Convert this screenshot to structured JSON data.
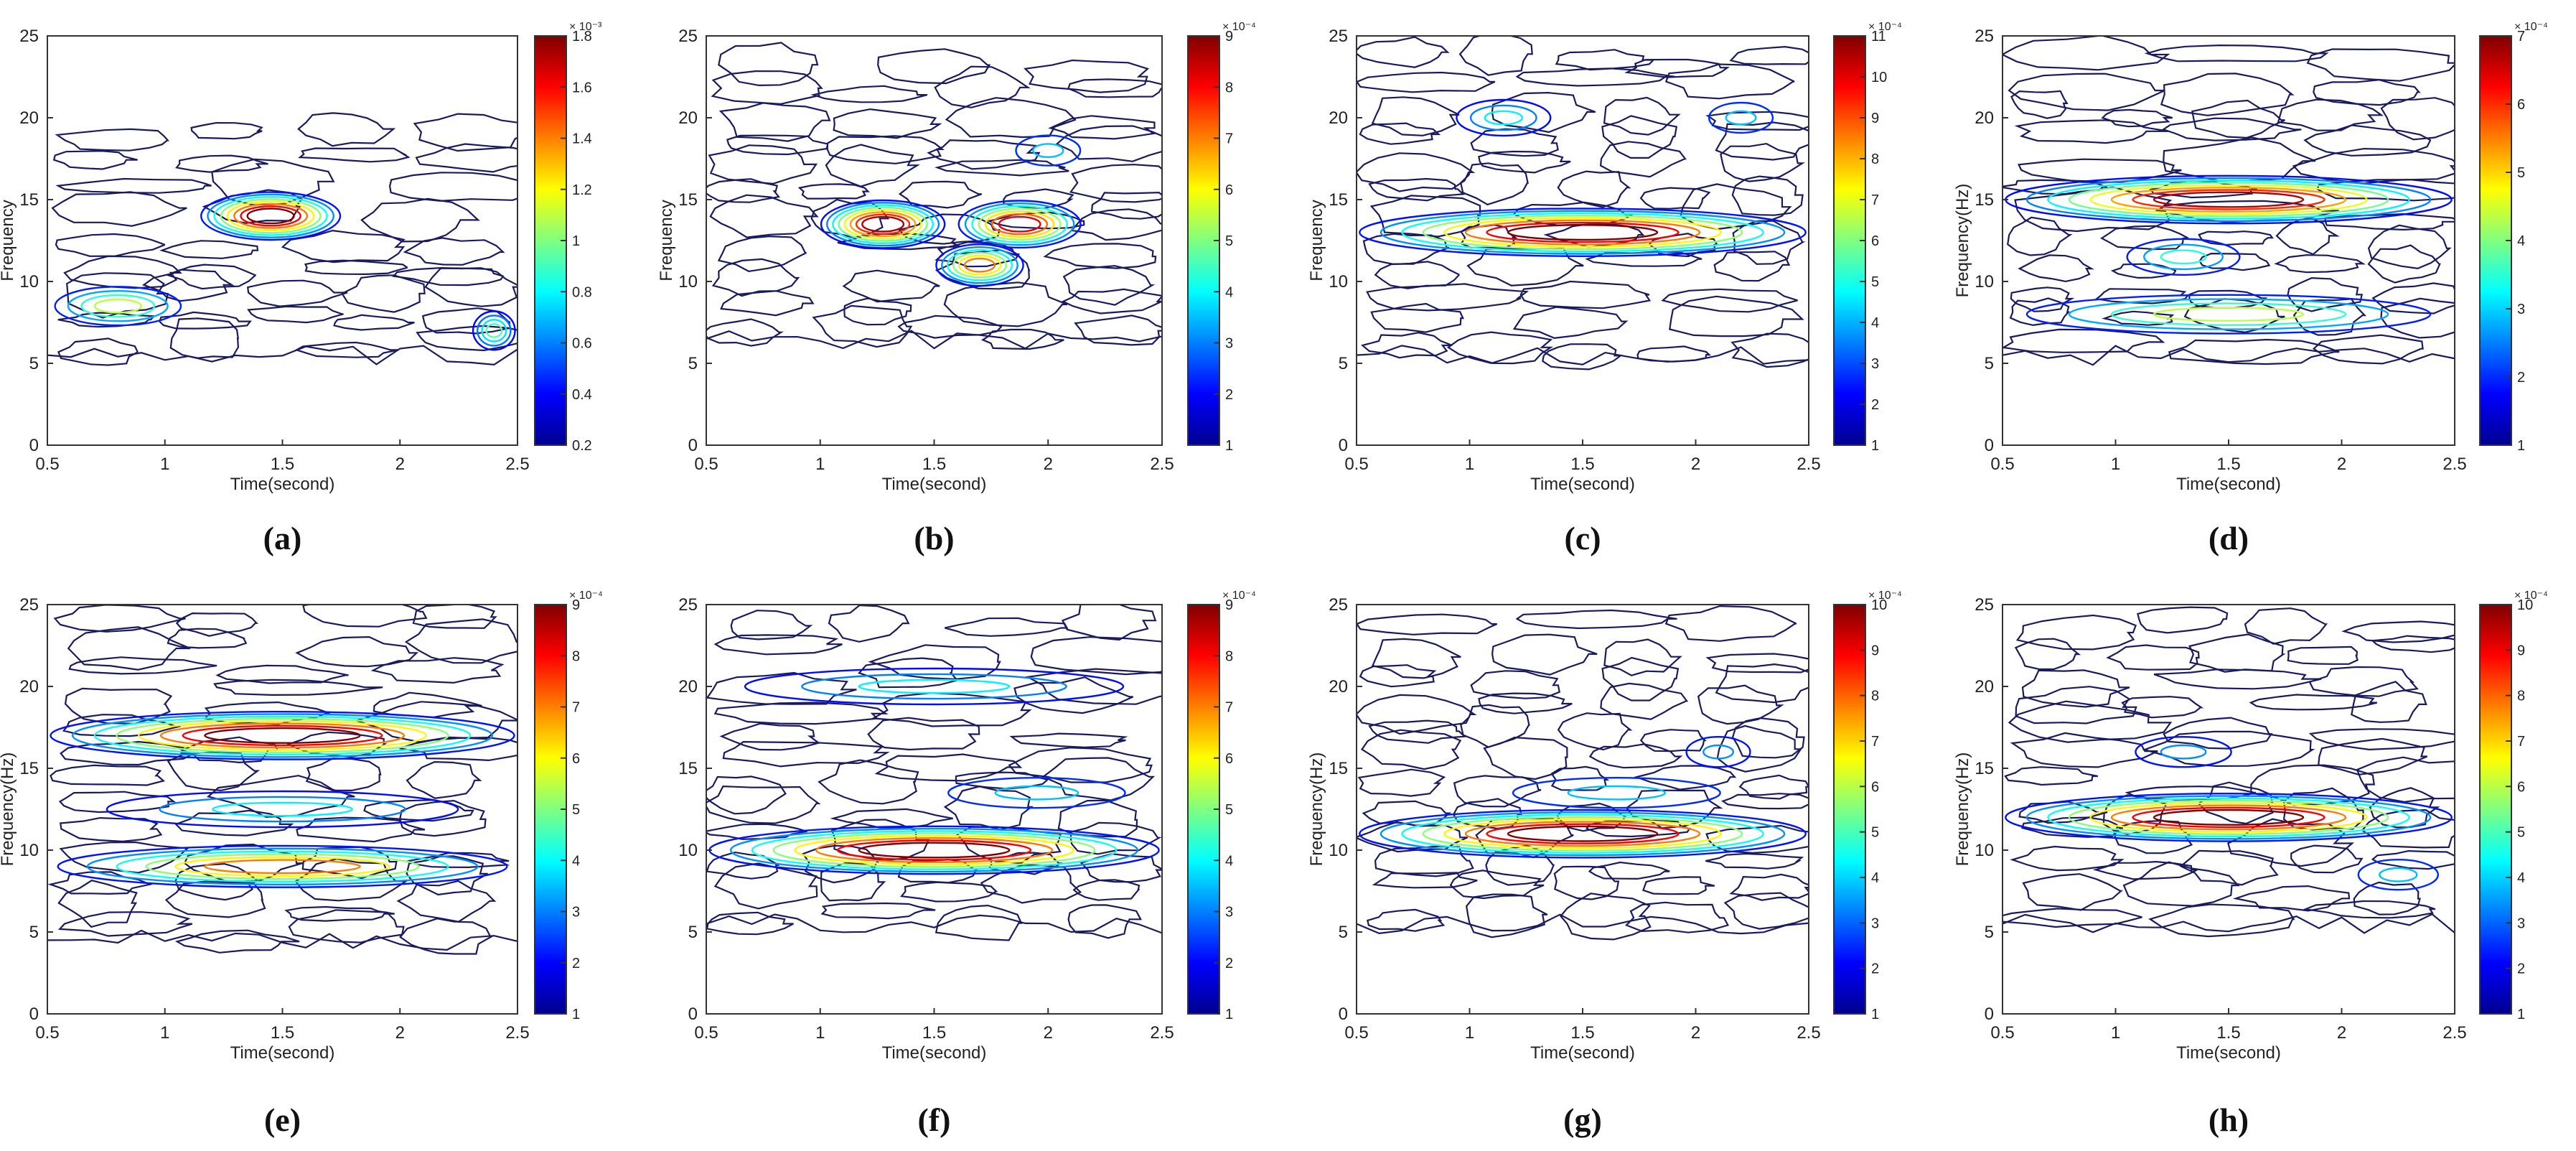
{
  "colorbar_palette": [
    "#00008f",
    "#0000ff",
    "#0080ff",
    "#00ffff",
    "#80ff80",
    "#ffff00",
    "#ff8000",
    "#ff0000",
    "#800000"
  ],
  "contour_line_color": "#1a1a5e",
  "chart_data": [
    {
      "panel": "(a)",
      "type": "heatmap",
      "subtype": "contour",
      "xlabel": "Time(second)",
      "ylabel": "Frequency",
      "xlim": [
        0.5,
        2.5
      ],
      "ylim": [
        0,
        25
      ],
      "xticks": [
        "0.5",
        "1",
        "1.5",
        "2",
        "2.5"
      ],
      "yticks": [
        "0",
        "5",
        "10",
        "15",
        "20",
        "25"
      ],
      "colorbar": {
        "min": 0.2,
        "max": 1.8,
        "exponent": "× 10⁻³",
        "ticks": [
          "0.2",
          "0.4",
          "0.6",
          "0.8",
          "1",
          "1.2",
          "1.4",
          "1.6",
          "1.8"
        ]
      },
      "bands": [
        {
          "freq": 14,
          "t_start": 1.15,
          "t_end": 1.75,
          "level": 1.0
        },
        {
          "freq": 8.5,
          "t_start": 0.5,
          "t_end": 1.1,
          "level": 0.55
        },
        {
          "freq": 7,
          "t_start": 2.3,
          "t_end": 2.5,
          "level": 0.45
        }
      ],
      "band_range": [
        6,
        20
      ]
    },
    {
      "panel": "(b)",
      "type": "heatmap",
      "subtype": "contour",
      "xlabel": "Time(second)",
      "ylabel": "Frequency",
      "xlim": [
        0.5,
        2.5
      ],
      "ylim": [
        0,
        25
      ],
      "xticks": [
        "0.5",
        "1",
        "1.5",
        "2",
        "2.5"
      ],
      "yticks": [
        "0",
        "5",
        "10",
        "15",
        "20",
        "25"
      ],
      "colorbar": {
        "min": 1,
        "max": 9,
        "exponent": "× 10⁻⁴",
        "ticks": [
          "1",
          "2",
          "3",
          "4",
          "5",
          "6",
          "7",
          "8",
          "9"
        ]
      },
      "bands": [
        {
          "freq": 13.5,
          "t_start": 1.0,
          "t_end": 1.55,
          "level": 0.95
        },
        {
          "freq": 13.5,
          "t_start": 1.6,
          "t_end": 2.15,
          "level": 0.9
        },
        {
          "freq": 11,
          "t_start": 1.5,
          "t_end": 1.9,
          "level": 0.75
        },
        {
          "freq": 18,
          "t_start": 1.8,
          "t_end": 2.2,
          "level": 0.3
        }
      ],
      "band_range": [
        7,
        24
      ]
    },
    {
      "panel": "(c)",
      "type": "heatmap",
      "subtype": "contour",
      "xlabel": "Time(second)",
      "ylabel": "Frequency",
      "xlim": [
        0.5,
        2.5
      ],
      "ylim": [
        0,
        25
      ],
      "xticks": [
        "0.5",
        "1",
        "1.5",
        "2",
        "2.5"
      ],
      "yticks": [
        "0",
        "5",
        "10",
        "15",
        "20",
        "25"
      ],
      "colorbar": {
        "min": 1,
        "max": 11,
        "exponent": "× 10⁻⁴",
        "ticks": [
          "1",
          "2",
          "3",
          "4",
          "5",
          "6",
          "7",
          "8",
          "9",
          "10",
          "11"
        ]
      },
      "bands": [
        {
          "freq": 13,
          "t_start": 0.5,
          "t_end": 2.5,
          "level": 1.0
        },
        {
          "freq": 20,
          "t_start": 0.9,
          "t_end": 1.4,
          "level": 0.35
        },
        {
          "freq": 20,
          "t_start": 2.0,
          "t_end": 2.4,
          "level": 0.3
        }
      ],
      "band_range": [
        6,
        25
      ]
    },
    {
      "panel": "(d)",
      "type": "heatmap",
      "subtype": "contour",
      "xlabel": "Time(second)",
      "ylabel": "Frequency(Hz)",
      "xlim": [
        0.5,
        2.5
      ],
      "ylim": [
        0,
        25
      ],
      "xticks": [
        "0.5",
        "1",
        "1.5",
        "2",
        "2.5"
      ],
      "yticks": [
        "0",
        "5",
        "10",
        "15",
        "20",
        "25"
      ],
      "colorbar": {
        "min": 1,
        "max": 7,
        "exponent": "× 10⁻⁴",
        "ticks": [
          "1",
          "2",
          "3",
          "4",
          "5",
          "6",
          "7"
        ]
      },
      "bands": [
        {
          "freq": 15,
          "t_start": 0.5,
          "t_end": 2.5,
          "level": 0.95
        },
        {
          "freq": 8,
          "t_start": 0.5,
          "t_end": 2.5,
          "level": 0.55
        },
        {
          "freq": 11.5,
          "t_start": 1.0,
          "t_end": 1.6,
          "level": 0.4
        }
      ],
      "band_range": [
        6,
        25
      ]
    },
    {
      "panel": "(e)",
      "type": "heatmap",
      "subtype": "contour",
      "xlabel": "Time(second)",
      "ylabel": "Frequency(Hz)",
      "xlim": [
        0.5,
        2.5
      ],
      "ylim": [
        0,
        25
      ],
      "xticks": [
        "0.5",
        "1",
        "1.5",
        "2",
        "2.5"
      ],
      "yticks": [
        "0",
        "5",
        "10",
        "15",
        "20",
        "25"
      ],
      "colorbar": {
        "min": 1,
        "max": 9,
        "exponent": "× 10⁻⁴",
        "ticks": [
          "1",
          "2",
          "3",
          "4",
          "5",
          "6",
          "7",
          "8",
          "9"
        ]
      },
      "bands": [
        {
          "freq": 17,
          "t_start": 0.5,
          "t_end": 2.5,
          "level": 1.0
        },
        {
          "freq": 9,
          "t_start": 0.5,
          "t_end": 2.5,
          "level": 0.75
        },
        {
          "freq": 12.5,
          "t_start": 0.6,
          "t_end": 2.4,
          "level": 0.35
        }
      ],
      "band_range": [
        5,
        25
      ]
    },
    {
      "panel": "(f)",
      "type": "heatmap",
      "subtype": "contour",
      "xlabel": "Time(second)",
      "ylabel": "",
      "xlim": [
        0.5,
        2.5
      ],
      "ylim": [
        0,
        25
      ],
      "xticks": [
        "0.5",
        "1",
        "1.5",
        "2",
        "2.5"
      ],
      "yticks": [
        "0",
        "5",
        "10",
        "15",
        "20",
        "25"
      ],
      "colorbar": {
        "min": 1,
        "max": 9,
        "exponent": "× 10⁻⁴",
        "ticks": [
          "1",
          "2",
          "3",
          "4",
          "5",
          "6",
          "7",
          "8",
          "9"
        ]
      },
      "bands": [
        {
          "freq": 10,
          "t_start": 0.5,
          "t_end": 2.5,
          "level": 1.0
        },
        {
          "freq": 20,
          "t_start": 0.5,
          "t_end": 2.5,
          "level": 0.35
        },
        {
          "freq": 13.5,
          "t_start": 1.4,
          "t_end": 2.5,
          "level": 0.3
        }
      ],
      "band_range": [
        6,
        25
      ]
    },
    {
      "panel": "(g)",
      "type": "heatmap",
      "subtype": "contour",
      "xlabel": "Time(second)",
      "ylabel": "Frequency(Hz)",
      "xlim": [
        0.5,
        2.5
      ],
      "ylim": [
        0,
        25
      ],
      "xticks": [
        "0.5",
        "1",
        "1.5",
        "2",
        "2.5"
      ],
      "yticks": [
        "0",
        "5",
        "10",
        "15",
        "20",
        "25"
      ],
      "colorbar": {
        "min": 1,
        "max": 10,
        "exponent": "× 10⁻⁴",
        "ticks": [
          "1",
          "2",
          "3",
          "4",
          "5",
          "6",
          "7",
          "8",
          "9",
          "10"
        ]
      },
      "bands": [
        {
          "freq": 11,
          "t_start": 0.5,
          "t_end": 2.5,
          "level": 1.0
        },
        {
          "freq": 13.5,
          "t_start": 1.0,
          "t_end": 2.3,
          "level": 0.3
        },
        {
          "freq": 16,
          "t_start": 1.9,
          "t_end": 2.3,
          "level": 0.25
        }
      ],
      "band_range": [
        6,
        25
      ]
    },
    {
      "panel": "(h)",
      "type": "heatmap",
      "subtype": "contour",
      "xlabel": "Time(second)",
      "ylabel": "Frequency(Hz)",
      "xlim": [
        0.5,
        2.5
      ],
      "ylim": [
        0,
        25
      ],
      "xticks": [
        "0.5",
        "1",
        "1.5",
        "2",
        "2.5"
      ],
      "yticks": [
        "0",
        "5",
        "10",
        "15",
        "20",
        "25"
      ],
      "colorbar": {
        "min": 1,
        "max": 10,
        "exponent": "× 10⁻⁴",
        "ticks": [
          "1",
          "2",
          "3",
          "4",
          "5",
          "6",
          "7",
          "8",
          "9",
          "10"
        ]
      },
      "bands": [
        {
          "freq": 12,
          "t_start": 0.5,
          "t_end": 2.5,
          "level": 1.0
        },
        {
          "freq": 8.5,
          "t_start": 2.0,
          "t_end": 2.5,
          "level": 0.3
        },
        {
          "freq": 16,
          "t_start": 1.0,
          "t_end": 1.6,
          "level": 0.25
        }
      ],
      "band_range": [
        6,
        25
      ]
    }
  ]
}
